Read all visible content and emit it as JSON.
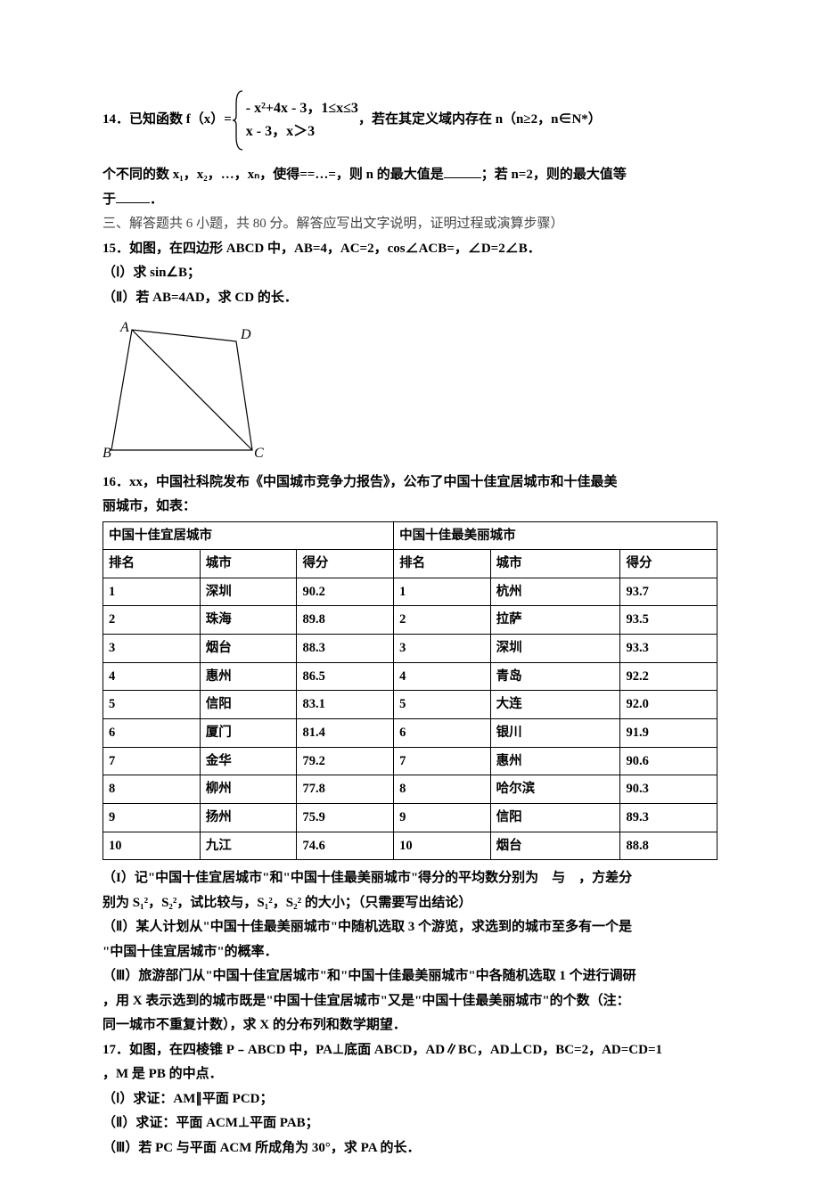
{
  "q14": {
    "prefix": "14．已知函数 f（x）=",
    "case1": "- x²+4x - 3，1≤x≤3",
    "case2": "x - 3，x＞3",
    "mid": "，若在其定义域内存在 n（n≥2，n∈N*）",
    "line2a": "个不同的数 x₁，x₂，…，xₙ，使得==…=，则 n 的最大值是",
    "line2b": "；若 n=2，则的最大值等",
    "line3": "于",
    "line3end": "．"
  },
  "sec3": "三、解答题共 6 小题，共 80 分。解答应写出文字说明，证明过程或演算步骤）",
  "q15": {
    "line1": "15．如图，在四边形 ABCD 中，AB=4，AC=2，cos∠ACB=，∠D=2∠B．",
    "part1": "（Ⅰ）求 sin∠B；",
    "part2": "（Ⅱ）若 AB=4AD，求 CD 的长．",
    "fig": {
      "labels": {
        "A": "A",
        "B": "B",
        "C": "C",
        "D": "D"
      },
      "stroke": "#000000",
      "text_color": "#000000",
      "font_style": "italic"
    }
  },
  "q16": {
    "intro1": "16．xx，中国社科院发布《中国城市竞争力报告》，公布了中国十佳宜居城市和十佳最美",
    "intro2": "丽城市，如表：",
    "table": {
      "header_left": "中国十佳宜居城市",
      "header_right": "中国十佳最美丽城市",
      "cols_left": [
        "排名",
        "城市",
        "得分"
      ],
      "cols_right": [
        "排名",
        "城市",
        "得分"
      ],
      "rows_left": [
        [
          "1",
          "深圳",
          "90.2"
        ],
        [
          "2",
          "珠海",
          "89.8"
        ],
        [
          "3",
          "烟台",
          "88.3"
        ],
        [
          "4",
          "惠州",
          "86.5"
        ],
        [
          "5",
          "信阳",
          "83.1"
        ],
        [
          "6",
          "厦门",
          "81.4"
        ],
        [
          "7",
          "金华",
          "79.2"
        ],
        [
          "8",
          "柳州",
          "77.8"
        ],
        [
          "9",
          "扬州",
          "75.9"
        ],
        [
          "10",
          "九江",
          "74.6"
        ]
      ],
      "rows_right": [
        [
          "1",
          "杭州",
          "93.7"
        ],
        [
          "2",
          "拉萨",
          "93.5"
        ],
        [
          "3",
          "深圳",
          "93.3"
        ],
        [
          "4",
          "青岛",
          "92.2"
        ],
        [
          "5",
          "大连",
          "92.0"
        ],
        [
          "6",
          "银川",
          "91.9"
        ],
        [
          "7",
          "惠州",
          "90.6"
        ],
        [
          "8",
          "哈尔滨",
          "90.3"
        ],
        [
          "9",
          "信阳",
          "89.3"
        ],
        [
          "10",
          "烟台",
          "88.8"
        ]
      ]
    },
    "p1a": "（I）记\"中国十佳宜居城市\"和\"中国十佳最美丽城市\"得分的平均数分别为　与　，方差分",
    "p1b": "别为 S₁²，S₂²，试比较与，S₁²，S₂² 的大小；（只需要写出结论）",
    "p2a": "（Ⅱ）某人计划从\"中国十佳最美丽城市\"中随机选取 3 个游览，求选到的城市至多有一个是",
    "p2b": "\"中国十佳宜居城市\"的概率．",
    "p3a": "（Ⅲ）旅游部门从\"中国十佳宜居城市\"和\"中国十佳最美丽城市\"中各随机选取 1 个进行调研",
    "p3b": "，用 X 表示选到的城市既是\"中国十佳宜居城市\"又是\"中国十佳最美丽城市\"的个数（注：",
    "p3c": "同一城市不重复计数），求 X 的分布列和数学期望．"
  },
  "q17": {
    "l1": "17．如图，在四棱锥 P﹣ABCD 中，PA⊥底面 ABCD，AD∥BC，AD⊥CD，BC=2，AD=CD=1",
    "l2": "，M 是 PB 的中点．",
    "p1": "（Ⅰ）求证：AM∥平面 PCD；",
    "p2": "（Ⅱ）求证：平面 ACM⊥平面 PAB；",
    "p3": "（Ⅲ）若 PC 与平面 ACM 所成角为 30°，求 PA 的长．"
  }
}
